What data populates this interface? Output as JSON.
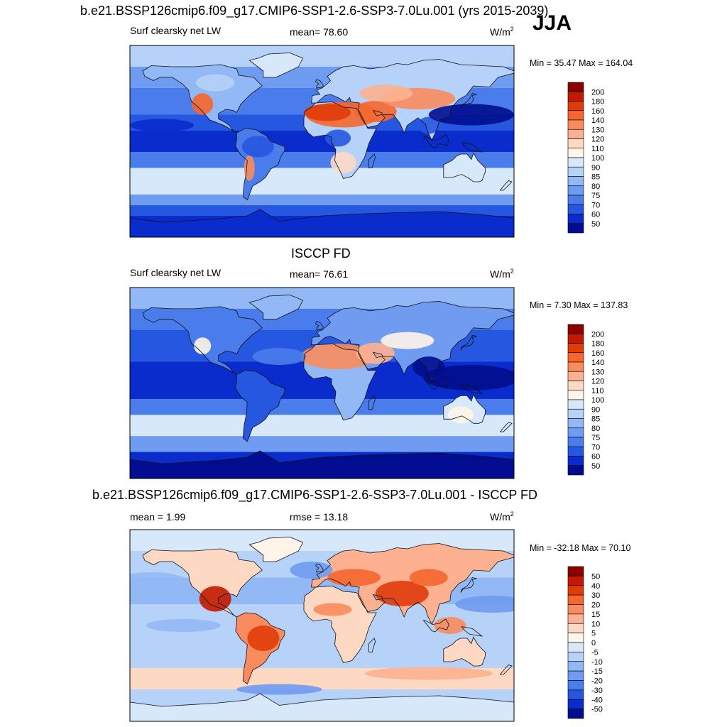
{
  "season": "JJA",
  "units_base": "W/m",
  "units_exp": "2",
  "chart_data": [
    {
      "type": "heatmap",
      "projection": "cylindrical-equidistant global map (Greenwich-centered)",
      "title": "b.e21.BSSP126cmip6.f09_g17.CMIP6-SSP1-2.6-SSP3-7.0Lu.001 (yrs 2015-2039)",
      "left_label": "Surf clearsky net LW",
      "center_label": "mean=  78.60",
      "minmax_label": "Min =  35.47 Max = 164.04",
      "stats": {
        "mean": 78.6,
        "min": 35.47,
        "max": 164.04
      },
      "colorbar_levels": [
        "200",
        "180",
        "160",
        "140",
        "130",
        "120",
        "110",
        "100",
        "90",
        "85",
        "80",
        "75",
        "70",
        "60",
        "50"
      ],
      "colorbar_colors": [
        "#8b0000",
        "#c21a00",
        "#e03c0a",
        "#f5672e",
        "#f98c5e",
        "#fdb190",
        "#fdd9c4",
        "#fff5e8",
        "#d8e8fb",
        "#b6d2f8",
        "#92b8f5",
        "#6f9bf0",
        "#4a7cec",
        "#2657e0",
        "#0a2ccc",
        "#010d8e"
      ],
      "field": "present"
    },
    {
      "type": "heatmap",
      "projection": "cylindrical-equidistant global map (Greenwich-centered)",
      "title": "ISCCP FD",
      "left_label": "Surf clearsky net LW",
      "center_label": "mean=  76.61",
      "minmax_label": "Min =   7.30 Max = 137.83",
      "stats": {
        "mean": 76.61,
        "min": 7.3,
        "max": 137.83
      },
      "colorbar_levels": [
        "200",
        "180",
        "160",
        "140",
        "130",
        "120",
        "110",
        "100",
        "90",
        "85",
        "80",
        "75",
        "70",
        "60",
        "50"
      ],
      "colorbar_colors": [
        "#8b0000",
        "#c21a00",
        "#e03c0a",
        "#f5672e",
        "#f98c5e",
        "#fdb190",
        "#fdd9c4",
        "#fff5e8",
        "#d8e8fb",
        "#b6d2f8",
        "#92b8f5",
        "#6f9bf0",
        "#4a7cec",
        "#2657e0",
        "#0a2ccc",
        "#010d8e"
      ],
      "field": "obs"
    },
    {
      "type": "heatmap",
      "projection": "cylindrical-equidistant global map (Greenwich-centered)",
      "title": "b.e21.BSSP126cmip6.f09_g17.CMIP6-SSP1-2.6-SSP3-7.0Lu.001 - ISCCP FD",
      "left_label": "mean =   1.99",
      "center_label": "rmse =  13.18",
      "minmax_label": "Min = -32.18 Max =  70.10",
      "stats": {
        "mean": 1.99,
        "rmse": 13.18,
        "min": -32.18,
        "max": 70.1
      },
      "colorbar_levels": [
        "50",
        "40",
        "30",
        "20",
        "15",
        "10",
        "5",
        "0",
        "-5",
        "-10",
        "-15",
        "-20",
        "-30",
        "-40",
        "-50"
      ],
      "colorbar_colors": [
        "#8b0000",
        "#c21a00",
        "#e03c0a",
        "#f5672e",
        "#f98c5e",
        "#fdb190",
        "#fdd9c4",
        "#fff5e8",
        "#d8e8fb",
        "#b6d2f8",
        "#92b8f5",
        "#6f9bf0",
        "#4a7cec",
        "#2657e0",
        "#0a2ccc",
        "#010d8e"
      ],
      "field": "diff"
    }
  ]
}
